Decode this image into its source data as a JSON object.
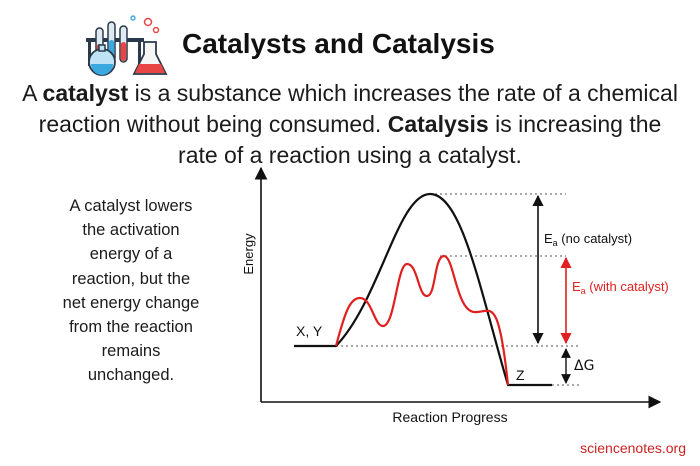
{
  "header": {
    "title": "Catalysts and Catalysis",
    "logo_icon": "lab-glassware-icon"
  },
  "intro": {
    "part1": "A ",
    "term1": "catalyst",
    "part2": " is a substance which increases the rate of a chemical reaction without being consumed. ",
    "term2": "Catalysis",
    "part3": " is increasing the rate of a reaction using a catalyst."
  },
  "side_note": {
    "lines": [
      "A catalyst lowers",
      "the activation",
      "energy of a",
      "reaction, but the",
      "net energy change",
      "from the reaction",
      "remains",
      "unchanged."
    ]
  },
  "diagram": {
    "y_axis_label": "Energy",
    "x_axis_label": "Reaction Progress",
    "reactant_label": "X, Y",
    "product_label": "Z",
    "ea_no_catalyst_symbol": "E",
    "ea_no_catalyst_sub": "a",
    "ea_no_catalyst_text": " (no catalyst)",
    "ea_with_catalyst_symbol": "E",
    "ea_with_catalyst_sub": "a",
    "ea_with_catalyst_text": " (with catalyst)",
    "delta_g_label": "ΔG",
    "colors": {
      "uncatalyzed": "#111111",
      "catalyzed": "#e02020",
      "axis": "#111111",
      "guide": "#555555"
    }
  },
  "footer": {
    "credit": "sciencenotes.org"
  }
}
